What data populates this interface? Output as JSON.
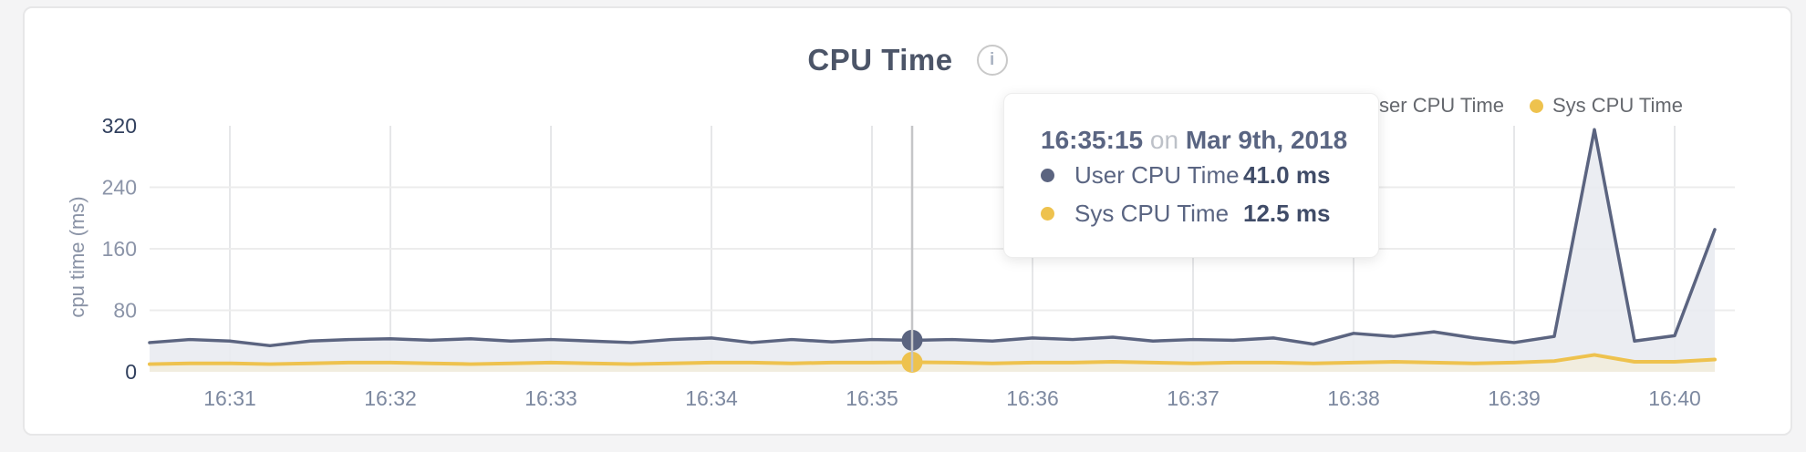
{
  "card": {
    "title": "CPU Time",
    "info_icon": "i"
  },
  "legend": {
    "items": [
      {
        "label": "User CPU Time",
        "color": "#5b6480"
      },
      {
        "label": "Sys CPU Time",
        "color": "#eec24e"
      }
    ]
  },
  "y_axis": {
    "label": "cpu time (ms)"
  },
  "tooltip": {
    "time": "16:35:15",
    "on_word": "on",
    "date": "Mar 9th, 2018",
    "rows": [
      {
        "label": "User CPU Time",
        "value": "41.0 ms"
      },
      {
        "label": "Sys CPU Time",
        "value": "12.5 ms"
      }
    ]
  },
  "chart_data": {
    "type": "area",
    "title": "CPU Time",
    "xlabel": "",
    "ylabel": "cpu time (ms)",
    "ylim": [
      0,
      320
    ],
    "yticks": [
      0,
      80,
      160,
      240,
      320
    ],
    "xticks": [
      "16:31",
      "16:32",
      "16:33",
      "16:34",
      "16:35",
      "16:36",
      "16:37",
      "16:38",
      "16:39",
      "16:40"
    ],
    "grid": true,
    "legend_position": "top-right",
    "x": [
      "16:30:30",
      "16:30:45",
      "16:31:00",
      "16:31:15",
      "16:31:30",
      "16:31:45",
      "16:32:00",
      "16:32:15",
      "16:32:30",
      "16:32:45",
      "16:33:00",
      "16:33:15",
      "16:33:30",
      "16:33:45",
      "16:34:00",
      "16:34:15",
      "16:34:30",
      "16:34:45",
      "16:35:00",
      "16:35:15",
      "16:35:30",
      "16:35:45",
      "16:36:00",
      "16:36:15",
      "16:36:30",
      "16:36:45",
      "16:37:00",
      "16:37:15",
      "16:37:30",
      "16:37:45",
      "16:38:00",
      "16:38:15",
      "16:38:30",
      "16:38:45",
      "16:39:00",
      "16:39:15",
      "16:39:30",
      "16:39:45",
      "16:40:00",
      "16:40:15"
    ],
    "series": [
      {
        "name": "User CPU Time",
        "color": "#5b6480",
        "fill": "#e9ebf1",
        "unit": "ms",
        "values": [
          38,
          42,
          40,
          34,
          40,
          42,
          43,
          41,
          43,
          40,
          42,
          40,
          38,
          42,
          44,
          38,
          42,
          39,
          42,
          41,
          42,
          40,
          44,
          42,
          45,
          40,
          42,
          41,
          44,
          36,
          50,
          46,
          52,
          44,
          38,
          46,
          315,
          40,
          47,
          185
        ]
      },
      {
        "name": "Sys CPU Time",
        "color": "#eec24e",
        "fill": "#f1eddd",
        "unit": "ms",
        "values": [
          10,
          11,
          11,
          10,
          11,
          12,
          12,
          11,
          10,
          11,
          12,
          11,
          10,
          11,
          12,
          12,
          11,
          12,
          12,
          12.5,
          12,
          11,
          12,
          12,
          13,
          12,
          11,
          12,
          12,
          11,
          12,
          13,
          12,
          11,
          12,
          14,
          22,
          13,
          13,
          16
        ]
      }
    ],
    "hover": {
      "time": "16:35:15",
      "date": "Mar 9th, 2018",
      "values": {
        "User CPU Time": 41.0,
        "Sys CPU Time": 12.5
      }
    }
  }
}
